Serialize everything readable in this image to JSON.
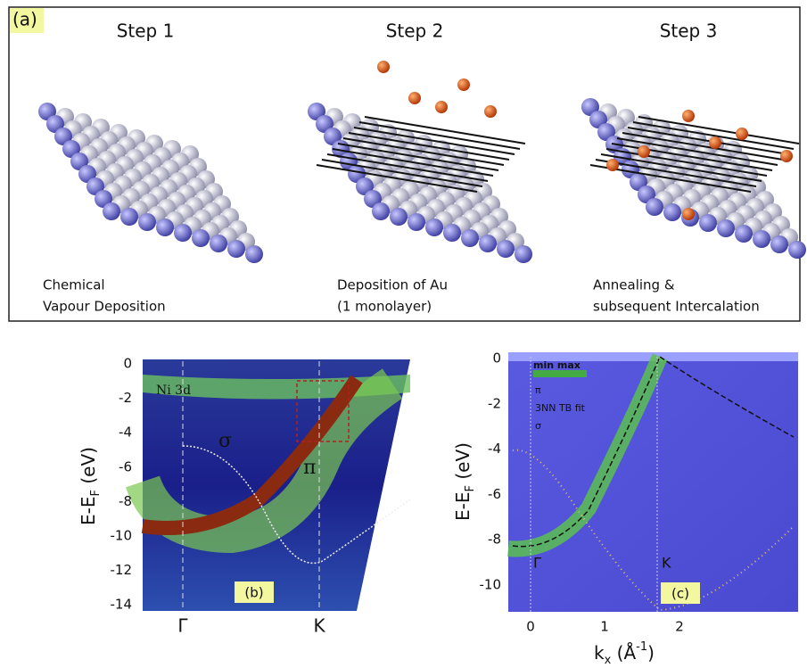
{
  "panel_a": {
    "label": "(a)",
    "steps": [
      {
        "title": "Step 1",
        "caption": [
          "Chemical",
          "Vapour Deposition"
        ]
      },
      {
        "title": "Step 2",
        "caption": [
          "Deposition of Au",
          "(1 monolayer)"
        ]
      },
      {
        "title": "Step 3",
        "caption": [
          "Annealing &",
          "subsequent Intercalation"
        ]
      }
    ]
  },
  "panel_b": {
    "label": "(b)",
    "ylabel": [
      "E-E",
      "F",
      " (eV)"
    ],
    "yticks": [
      "0",
      "-2",
      "-4",
      "-6",
      "-8",
      "-10",
      "-12",
      "-14"
    ],
    "xticks": [
      "Γ",
      "K"
    ],
    "annotations": [
      "Ni 3d",
      "σ",
      "π"
    ]
  },
  "panel_c": {
    "label": "(c)",
    "ylabel": [
      "E-E",
      "F",
      " (eV)"
    ],
    "yticks": [
      "0",
      "-2",
      "-4",
      "-6",
      "-8",
      "-10"
    ],
    "xticks": [
      "0",
      "1",
      "2"
    ],
    "xlabel": [
      "k",
      "x",
      " (Å",
      "-1",
      ")"
    ],
    "legend": [
      "min max",
      "π",
      "3NN TB fit",
      "σ"
    ],
    "annotations": [
      "Γ",
      "K"
    ]
  }
}
